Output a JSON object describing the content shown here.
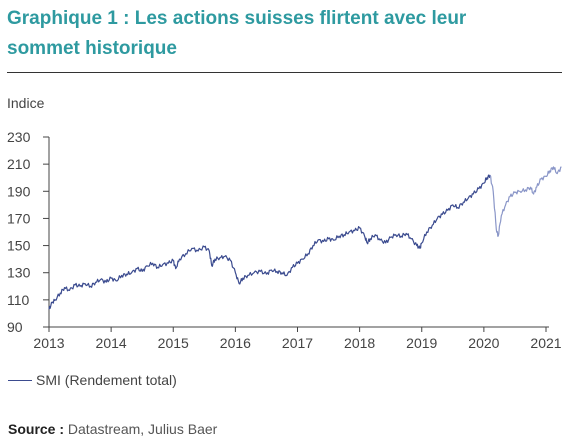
{
  "header": {
    "title": "Graphique 1 : Les actions suisses flirtent avec leur sommet historique"
  },
  "footer": {
    "source_label": "Source :",
    "source_text": " Datastream, Julius Baer"
  },
  "colors": {
    "title": "#2e9aa0",
    "series": "#3b4b8f",
    "series_light": "#8a96c8"
  },
  "chart_data": {
    "type": "line",
    "ylabel": "Indice",
    "ylim": [
      90,
      230
    ],
    "yticks": [
      90,
      110,
      130,
      150,
      170,
      190,
      210,
      230
    ],
    "xlim": [
      2013,
      2021.3
    ],
    "xticks": [
      "2013",
      "2014",
      "2015",
      "2016",
      "2017",
      "2018",
      "2019",
      "2020",
      "2021"
    ],
    "grid": false,
    "legend": "bottom-left",
    "series": [
      {
        "name": "SMI (Rendement total)",
        "points": [
          [
            2013.0,
            103
          ],
          [
            2013.05,
            108
          ],
          [
            2013.1,
            110
          ],
          [
            2013.18,
            115
          ],
          [
            2013.25,
            119
          ],
          [
            2013.33,
            117
          ],
          [
            2013.42,
            121
          ],
          [
            2013.5,
            120
          ],
          [
            2013.58,
            122
          ],
          [
            2013.67,
            120
          ],
          [
            2013.75,
            123
          ],
          [
            2013.83,
            125
          ],
          [
            2013.92,
            123
          ],
          [
            2014.0,
            126
          ],
          [
            2014.08,
            124
          ],
          [
            2014.17,
            128
          ],
          [
            2014.25,
            129
          ],
          [
            2014.33,
            130
          ],
          [
            2014.42,
            133
          ],
          [
            2014.5,
            131
          ],
          [
            2014.58,
            135
          ],
          [
            2014.67,
            137
          ],
          [
            2014.75,
            134
          ],
          [
            2014.83,
            136
          ],
          [
            2014.92,
            137
          ],
          [
            2015.0,
            139
          ],
          [
            2015.04,
            133
          ],
          [
            2015.1,
            140
          ],
          [
            2015.2,
            144
          ],
          [
            2015.3,
            148
          ],
          [
            2015.4,
            146
          ],
          [
            2015.5,
            149
          ],
          [
            2015.58,
            146
          ],
          [
            2015.62,
            135
          ],
          [
            2015.67,
            140
          ],
          [
            2015.75,
            141
          ],
          [
            2015.83,
            142
          ],
          [
            2015.92,
            139
          ],
          [
            2016.0,
            130
          ],
          [
            2016.06,
            122
          ],
          [
            2016.12,
            126
          ],
          [
            2016.2,
            128
          ],
          [
            2016.3,
            130
          ],
          [
            2016.4,
            131
          ],
          [
            2016.5,
            129
          ],
          [
            2016.58,
            132
          ],
          [
            2016.67,
            131
          ],
          [
            2016.75,
            130
          ],
          [
            2016.83,
            128
          ],
          [
            2016.92,
            134
          ],
          [
            2017.0,
            137
          ],
          [
            2017.08,
            140
          ],
          [
            2017.17,
            144
          ],
          [
            2017.25,
            150
          ],
          [
            2017.33,
            154
          ],
          [
            2017.42,
            153
          ],
          [
            2017.5,
            155
          ],
          [
            2017.58,
            154
          ],
          [
            2017.67,
            157
          ],
          [
            2017.75,
            158
          ],
          [
            2017.83,
            160
          ],
          [
            2017.92,
            161
          ],
          [
            2018.0,
            163
          ],
          [
            2018.08,
            157
          ],
          [
            2018.12,
            152
          ],
          [
            2018.17,
            155
          ],
          [
            2018.25,
            158
          ],
          [
            2018.33,
            154
          ],
          [
            2018.42,
            152
          ],
          [
            2018.5,
            156
          ],
          [
            2018.58,
            158
          ],
          [
            2018.67,
            157
          ],
          [
            2018.75,
            159
          ],
          [
            2018.83,
            155
          ],
          [
            2018.92,
            150
          ],
          [
            2018.97,
            148
          ],
          [
            2019.0,
            152
          ],
          [
            2019.08,
            160
          ],
          [
            2019.17,
            165
          ],
          [
            2019.25,
            170
          ],
          [
            2019.33,
            173
          ],
          [
            2019.42,
            176
          ],
          [
            2019.5,
            180
          ],
          [
            2019.58,
            178
          ],
          [
            2019.67,
            182
          ],
          [
            2019.75,
            185
          ],
          [
            2019.83,
            188
          ],
          [
            2019.92,
            192
          ],
          [
            2020.0,
            196
          ],
          [
            2020.05,
            200
          ],
          [
            2020.1,
            202
          ]
        ]
      },
      {
        "name": "",
        "points": [
          [
            2020.1,
            202
          ],
          [
            2020.15,
            190
          ],
          [
            2020.2,
            162
          ],
          [
            2020.23,
            157
          ],
          [
            2020.28,
            172
          ],
          [
            2020.35,
            180
          ],
          [
            2020.42,
            186
          ],
          [
            2020.5,
            189
          ],
          [
            2020.58,
            190
          ],
          [
            2020.67,
            191
          ],
          [
            2020.75,
            193
          ],
          [
            2020.8,
            188
          ],
          [
            2020.85,
            193
          ],
          [
            2020.92,
            199
          ],
          [
            2021.0,
            201
          ],
          [
            2021.06,
            205
          ],
          [
            2021.12,
            208
          ],
          [
            2021.18,
            203
          ],
          [
            2021.25,
            208
          ]
        ]
      }
    ]
  }
}
